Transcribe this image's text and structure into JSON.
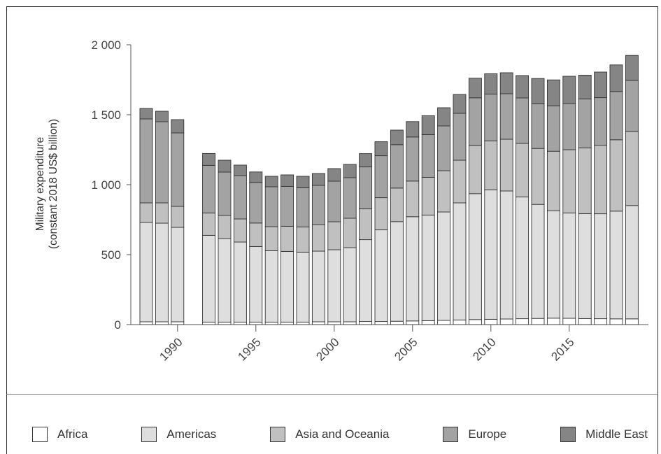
{
  "chart_data": {
    "type": "bar",
    "stacked": true,
    "ylabel_line1": "Military expenditure",
    "ylabel_line2": "(constant 2018 US$ billion)",
    "ylim": [
      0,
      2000
    ],
    "yticks": [
      0,
      500,
      1000,
      1500,
      2000
    ],
    "ytick_labels": [
      "0",
      "500",
      "1 000",
      "1 500",
      "2 000"
    ],
    "xticks": [
      1990,
      1995,
      2000,
      2005,
      2010,
      2015
    ],
    "xtick_labels": [
      "1990",
      "1995",
      "2000",
      "2005",
      "2010",
      "2015"
    ],
    "years": [
      1988,
      1989,
      1990,
      1991,
      1992,
      1993,
      1994,
      1995,
      1996,
      1997,
      1998,
      1999,
      2000,
      2001,
      2002,
      2003,
      2004,
      2005,
      2006,
      2007,
      2008,
      2009,
      2010,
      2011,
      2012,
      2013,
      2014,
      2015,
      2016,
      2017,
      2018,
      2019
    ],
    "series": [
      {
        "name": "Africa",
        "color": "#ffffff",
        "values": [
          20,
          20,
          20,
          null,
          18,
          18,
          18,
          18,
          18,
          18,
          18,
          20,
          20,
          20,
          22,
          22,
          24,
          26,
          28,
          30,
          33,
          36,
          38,
          40,
          42,
          44,
          46,
          45,
          43,
          42,
          41,
          41
        ]
      },
      {
        "name": "Americas",
        "color": "#dedede",
        "values": [
          710,
          705,
          675,
          null,
          620,
          597,
          572,
          540,
          510,
          505,
          500,
          505,
          515,
          530,
          585,
          655,
          712,
          745,
          755,
          775,
          837,
          900,
          925,
          915,
          870,
          815,
          767,
          753,
          750,
          750,
          770,
          810
        ]
      },
      {
        "name": "Asia and Oceania",
        "color": "#c0c0c0",
        "values": [
          140,
          145,
          150,
          null,
          160,
          165,
          165,
          168,
          172,
          180,
          180,
          190,
          200,
          210,
          220,
          230,
          240,
          255,
          270,
          295,
          305,
          345,
          350,
          370,
          383,
          400,
          426,
          452,
          470,
          490,
          510,
          530
        ]
      },
      {
        "name": "Europe",
        "color": "#a3a3a3",
        "values": [
          600,
          580,
          525,
          null,
          340,
          310,
          310,
          290,
          285,
          285,
          280,
          280,
          290,
          290,
          300,
          300,
          310,
          315,
          305,
          320,
          335,
          340,
          335,
          325,
          325,
          320,
          325,
          330,
          350,
          340,
          345,
          365
        ]
      },
      {
        "name": "Middle East",
        "color": "#858585",
        "values": [
          75,
          75,
          95,
          null,
          85,
          85,
          75,
          75,
          75,
          82,
          82,
          85,
          90,
          95,
          95,
          100,
          104,
          110,
          135,
          130,
          135,
          140,
          145,
          150,
          160,
          180,
          185,
          195,
          170,
          183,
          190,
          178
        ]
      }
    ],
    "legend_position": "bottom",
    "grid": false
  }
}
